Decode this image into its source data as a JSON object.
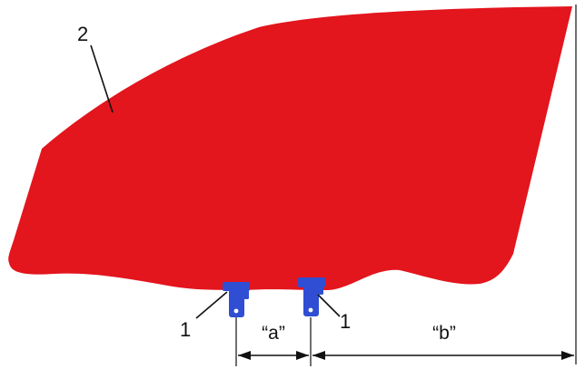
{
  "colors": {
    "glass": "#e3151d",
    "bracket": "#2f4ed3",
    "bracket_dark": "#16278f",
    "line": "#111111"
  },
  "labels": {
    "glass_callout": "2",
    "bracket_left_callout": "1",
    "bracket_right_callout": "1",
    "dimension_a": "“a”",
    "dimension_b": "“b”"
  },
  "icons": {
    "bracket": "window-regulator-bracket-icon",
    "dimension_arrow": "arrowhead-icon"
  }
}
